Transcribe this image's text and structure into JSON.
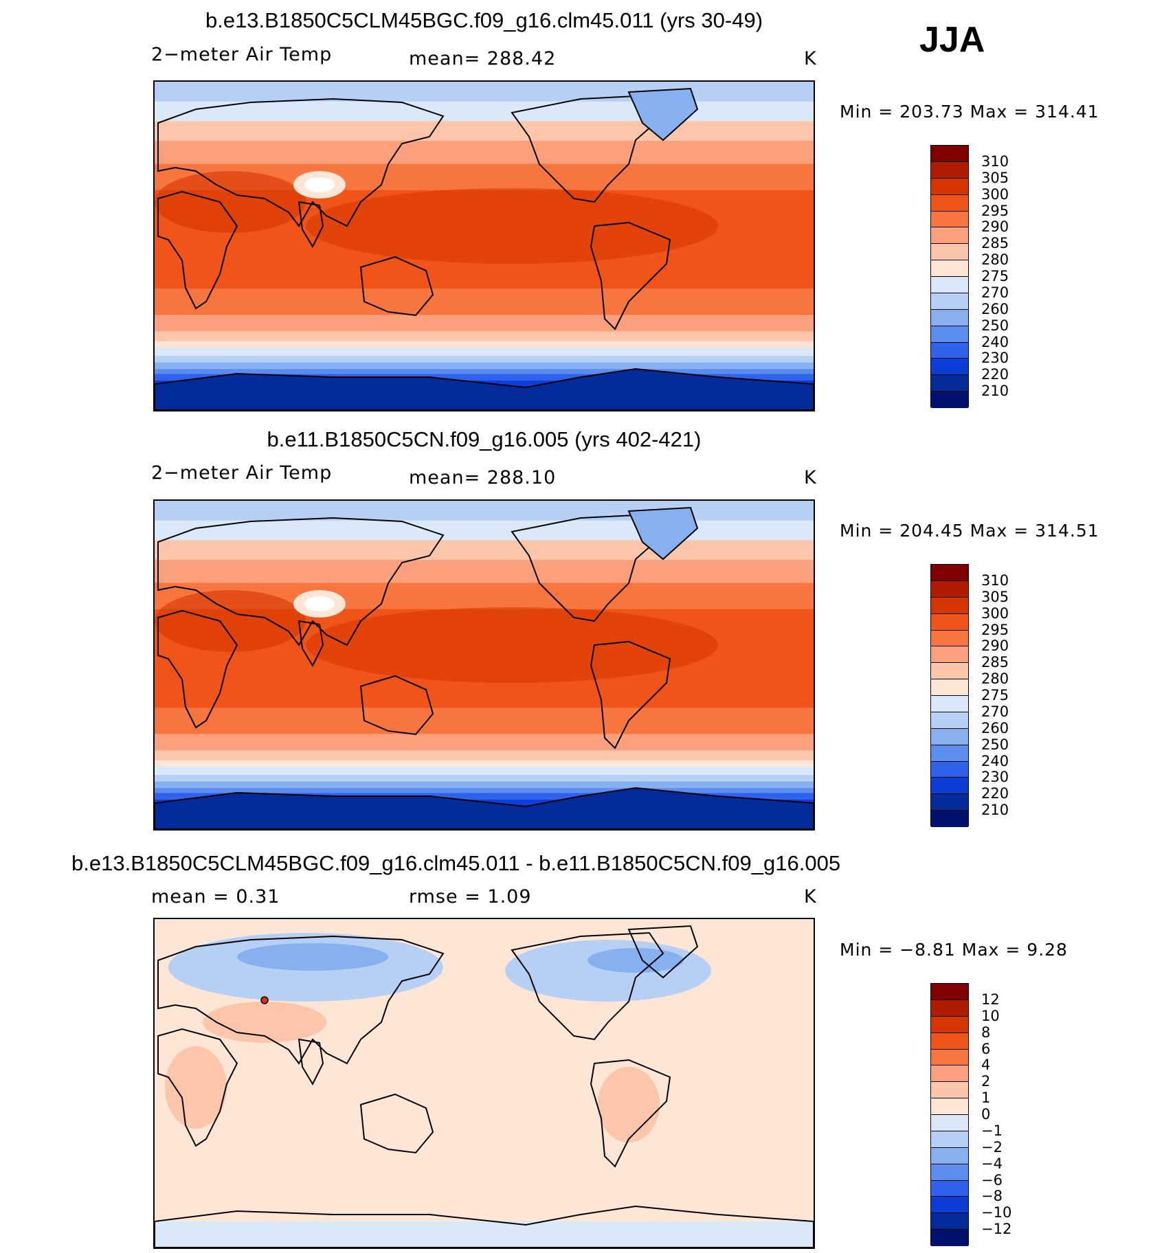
{
  "season": "JJA",
  "panels": [
    {
      "title": "b.e13.B1850C5CLM45BGC.f09_g16.clm45.011 (yrs 30-49)",
      "variable": "2−meter Air Temp",
      "stat": "mean=  288.42",
      "stat2": "",
      "units": "K",
      "minmax": "Min  =  203.73  Max  =  314.41",
      "legend_labels": [
        "310",
        "305",
        "300",
        "295",
        "290",
        "285",
        "280",
        "275",
        "270",
        "260",
        "250",
        "240",
        "230",
        "220",
        "210"
      ],
      "legend_colors": [
        "#800000",
        "#b01c00",
        "#d63500",
        "#f05418",
        "#f7763f",
        "#faa07c",
        "#fcc6ab",
        "#fee6d6",
        "#d9e9f9",
        "#b5d0f4",
        "#86b0ef",
        "#5c8df0",
        "#2f63ec",
        "#0a3fd8",
        "#032b9a",
        "#00126e"
      ]
    },
    {
      "title": "b.e11.B1850C5CN.f09_g16.005 (yrs 402-421)",
      "variable": "2−meter Air Temp",
      "stat": "mean=  288.10",
      "stat2": "",
      "units": "K",
      "minmax": "Min  =  204.45  Max  =  314.51",
      "legend_labels": [
        "310",
        "305",
        "300",
        "295",
        "290",
        "285",
        "280",
        "275",
        "270",
        "260",
        "250",
        "240",
        "230",
        "220",
        "210"
      ],
      "legend_colors": [
        "#800000",
        "#b01c00",
        "#d63500",
        "#f05418",
        "#f7763f",
        "#faa07c",
        "#fcc6ab",
        "#fee6d6",
        "#d9e9f9",
        "#b5d0f4",
        "#86b0ef",
        "#5c8df0",
        "#2f63ec",
        "#0a3fd8",
        "#032b9a",
        "#00126e"
      ]
    },
    {
      "title": "b.e13.B1850C5CLM45BGC.f09_g16.clm45.011 - b.e11.B1850C5CN.f09_g16.005",
      "variable": "mean =     0.31",
      "stat": "rmse =     1.09",
      "stat2": "",
      "units": "K",
      "minmax": "Min  =    −8.81  Max  =     9.28",
      "legend_labels": [
        "12",
        "10",
        "8",
        "6",
        "4",
        "2",
        "1",
        "0",
        "−1",
        "−2",
        "−4",
        "−6",
        "−8",
        "−10",
        "−12"
      ],
      "legend_colors": [
        "#800000",
        "#b01c00",
        "#d63500",
        "#f05418",
        "#f7763f",
        "#faa07c",
        "#fcc6ab",
        "#fee6d6",
        "#d9e9f9",
        "#b5d0f4",
        "#86b0ef",
        "#5c8df0",
        "#2f63ec",
        "#0a3fd8",
        "#032b9a",
        "#00126e"
      ]
    }
  ]
}
